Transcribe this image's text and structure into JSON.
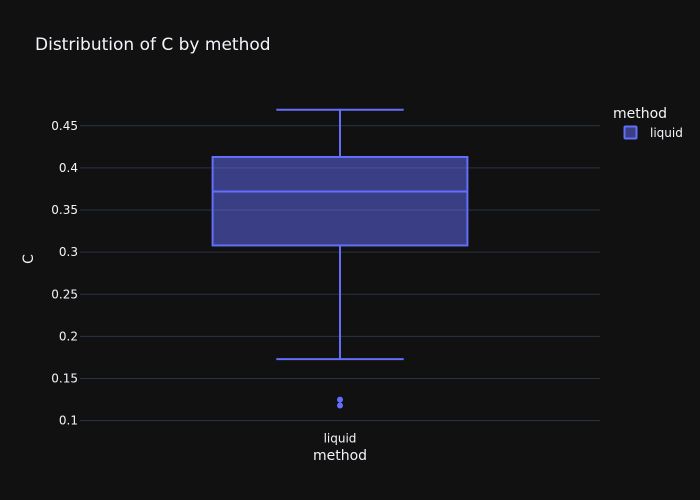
{
  "chart_data": {
    "type": "box",
    "title": "Distribution of C by method",
    "xlabel": "method",
    "ylabel": "C",
    "categories": [
      "liquid"
    ],
    "ylim": [
      0.0925,
      0.4925
    ],
    "yticks": [
      0.1,
      0.15,
      0.2,
      0.25,
      0.3,
      0.35,
      0.4,
      0.45
    ],
    "ytick_labels": [
      "0.1",
      "0.15",
      "0.2",
      "0.25",
      "0.3",
      "0.35",
      "0.4",
      "0.45"
    ],
    "grid": true,
    "legend": {
      "title": "method",
      "position": "top-right"
    },
    "series": [
      {
        "name": "liquid",
        "color": "#636efa",
        "box": {
          "category": "liquid",
          "lower_whisker": 0.173,
          "q1": 0.308,
          "median": 0.372,
          "q3": 0.413,
          "upper_whisker": 0.469
        },
        "outliers": [
          0.125,
          0.118
        ]
      }
    ]
  },
  "colors": {
    "background": "#111111",
    "grid": "#283442",
    "text": "#f2f5fa",
    "series": "#636efa"
  }
}
